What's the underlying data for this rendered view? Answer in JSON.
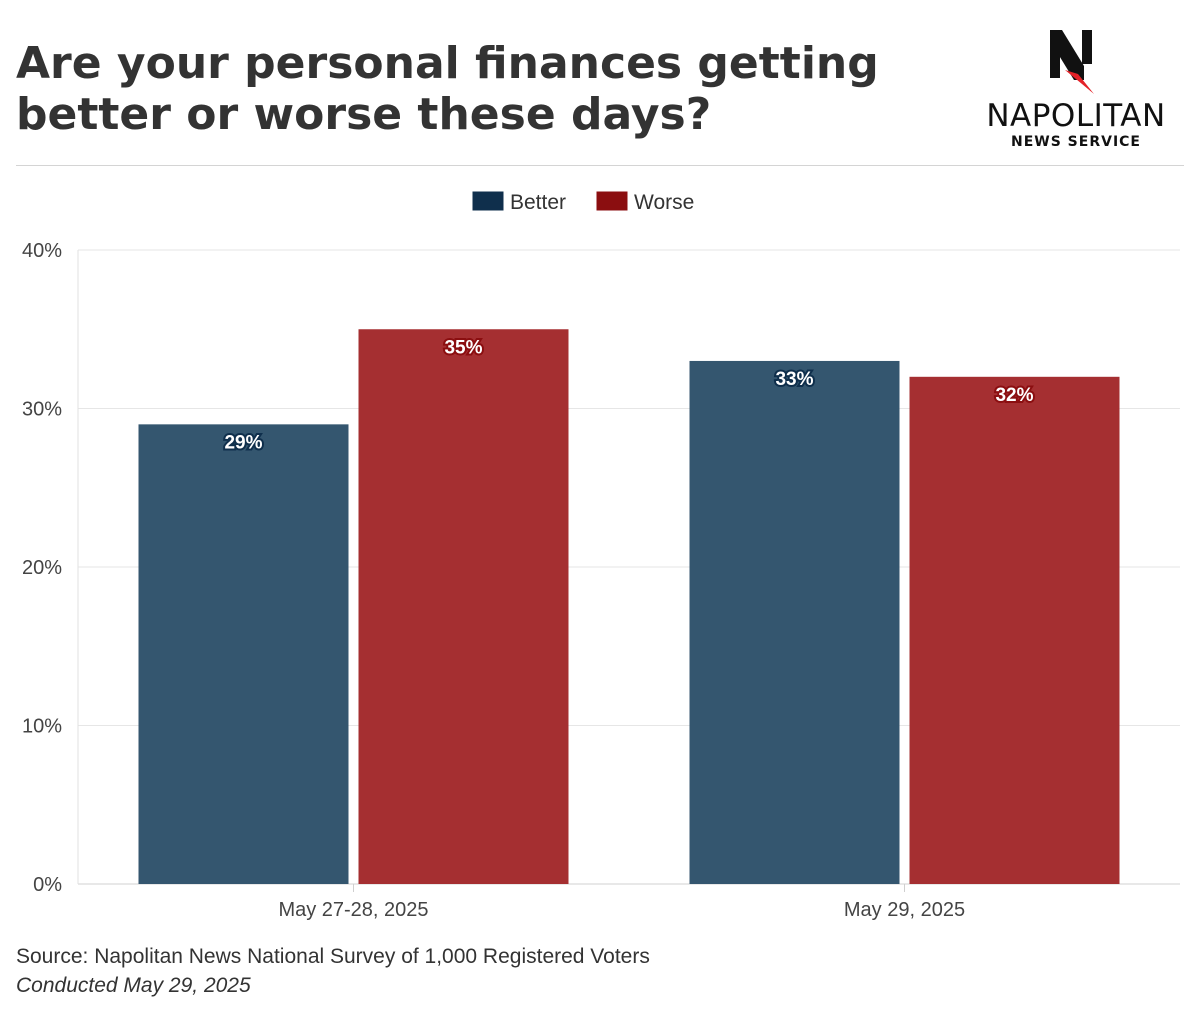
{
  "title": "Are your personal finances getting better or worse these days?",
  "logo": {
    "name": "NAPOLITAN",
    "sub": "NEWS SERVICE",
    "monogram": "N"
  },
  "colors": {
    "better": "#34566f",
    "worse": "#a52f31",
    "better_legend": "#0f2f4c",
    "worse_legend": "#8b0e10"
  },
  "chart_data": {
    "type": "bar",
    "categories": [
      "May 27-28, 2025",
      "May 29, 2025"
    ],
    "series": [
      {
        "name": "Better",
        "values": [
          29,
          33
        ],
        "labels": [
          "29%",
          "33%"
        ]
      },
      {
        "name": "Worse",
        "values": [
          35,
          32
        ],
        "labels": [
          "35%",
          "32%"
        ]
      }
    ],
    "ylim": [
      0,
      40
    ],
    "yticks": [
      0,
      10,
      20,
      30,
      40
    ],
    "ytick_labels": [
      "0%",
      "10%",
      "20%",
      "30%",
      "40%"
    ],
    "grid": true,
    "legend": "top-center"
  },
  "footer": {
    "source": "Source: Napolitan News National Survey of 1,000 Registered Voters",
    "conducted": "Conducted May 29, 2025"
  }
}
